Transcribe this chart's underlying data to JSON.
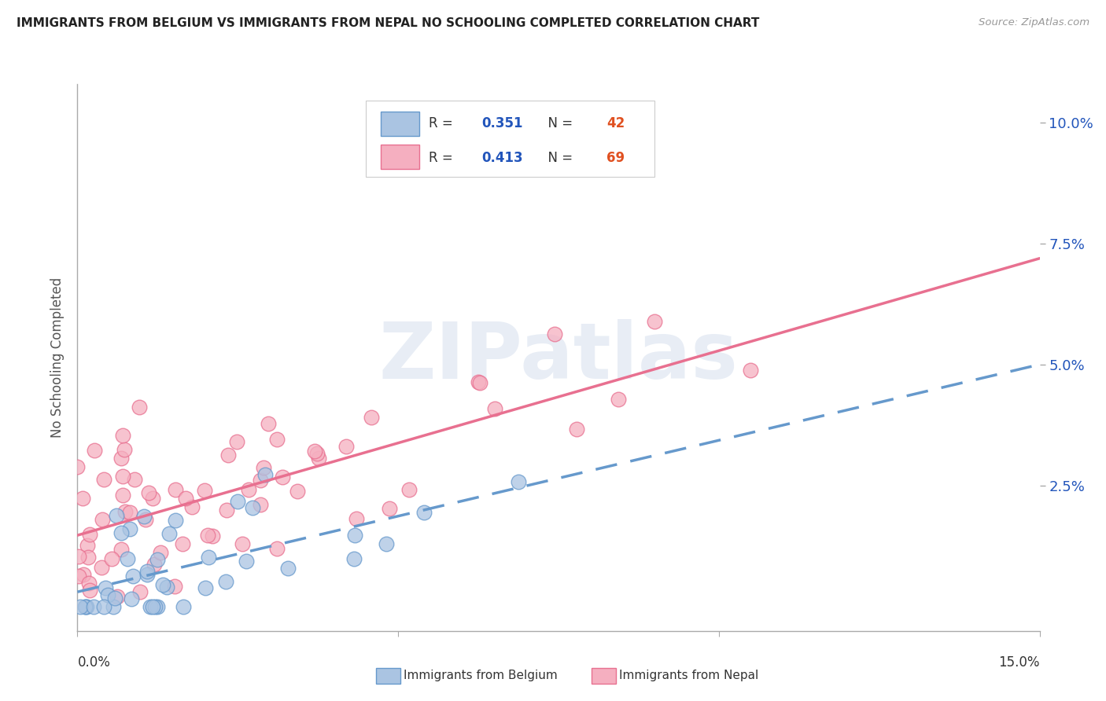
{
  "title": "IMMIGRANTS FROM BELGIUM VS IMMIGRANTS FROM NEPAL NO SCHOOLING COMPLETED CORRELATION CHART",
  "source": "Source: ZipAtlas.com",
  "ylabel": "No Schooling Completed",
  "ytick_labels": [
    "2.5%",
    "5.0%",
    "7.5%",
    "10.0%"
  ],
  "ytick_values": [
    0.025,
    0.05,
    0.075,
    0.1
  ],
  "xmin": 0.0,
  "xmax": 0.15,
  "ymin": -0.005,
  "ymax": 0.108,
  "belgium_color": "#aac4e2",
  "nepal_color": "#f5afc0",
  "belgium_edge": "#6699cc",
  "nepal_edge": "#e87090",
  "r_belgium": 0.351,
  "n_belgium": 42,
  "r_nepal": 0.413,
  "n_nepal": 69,
  "watermark": "ZIPatlas",
  "legend_label_belgium": "Immigrants from Belgium",
  "legend_label_nepal": "Immigrants from Nepal",
  "r_color": "#2255bb",
  "n_color": "#e05020",
  "background_color": "#ffffff",
  "grid_color": "#dddddd",
  "title_color": "#222222",
  "source_color": "#999999",
  "ylabel_color": "#555555"
}
